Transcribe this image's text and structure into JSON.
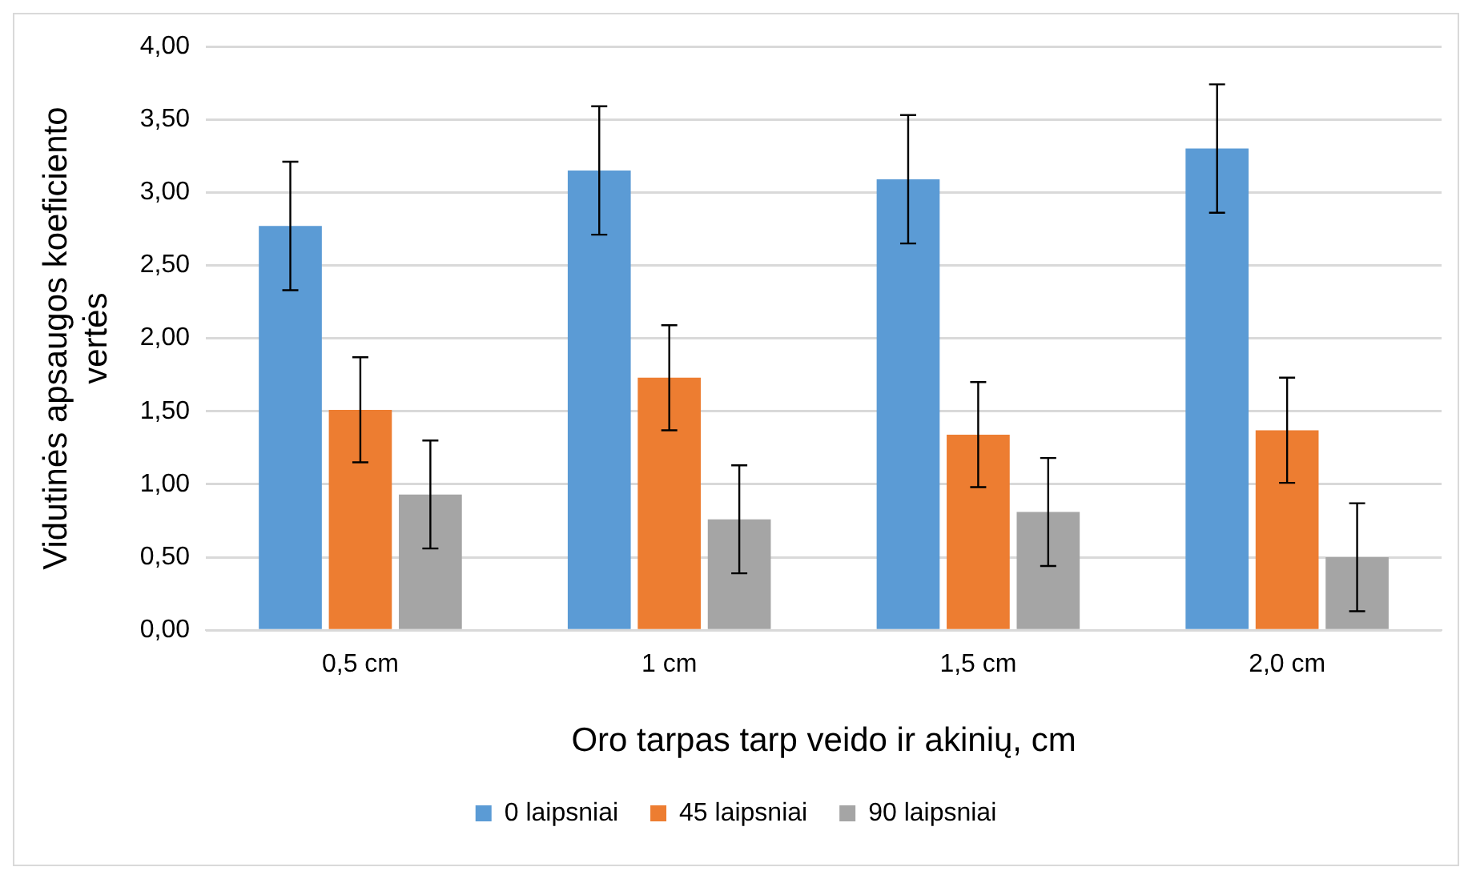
{
  "chart_data": {
    "type": "bar",
    "xlabel": "Oro tarpas tarp veido ir akinių, cm",
    "ylabel": "Vidutinės apsaugos koeficiento vertės",
    "categories": [
      "0,5 cm",
      "1 cm",
      "1,5 cm",
      "2,0 cm"
    ],
    "series": [
      {
        "name": "0 laipsniai",
        "color": "#5b9bd5",
        "values": [
          2.77,
          3.15,
          3.09,
          3.3
        ],
        "errors": [
          0.44,
          0.44,
          0.44,
          0.44
        ]
      },
      {
        "name": "45 laipsniai",
        "color": "#ed7d31",
        "values": [
          1.51,
          1.73,
          1.34,
          1.37
        ],
        "errors": [
          0.36,
          0.36,
          0.36,
          0.36
        ]
      },
      {
        "name": "90 laipsniai",
        "color": "#a5a5a5",
        "values": [
          0.93,
          0.76,
          0.81,
          0.5
        ],
        "errors": [
          0.37,
          0.37,
          0.37,
          0.37
        ]
      }
    ],
    "ylim": [
      0,
      4
    ],
    "yticks": [
      {
        "value": 0,
        "label": "0,00"
      },
      {
        "value": 0.5,
        "label": "0,50"
      },
      {
        "value": 1,
        "label": "1,00"
      },
      {
        "value": 1.5,
        "label": "1,50"
      },
      {
        "value": 2,
        "label": "2,00"
      },
      {
        "value": 2.5,
        "label": "2,50"
      },
      {
        "value": 3,
        "label": "3,00"
      },
      {
        "value": 3.5,
        "label": "3,50"
      },
      {
        "value": 4,
        "label": "4,00"
      }
    ],
    "grid": "y",
    "legend": "bottom"
  }
}
